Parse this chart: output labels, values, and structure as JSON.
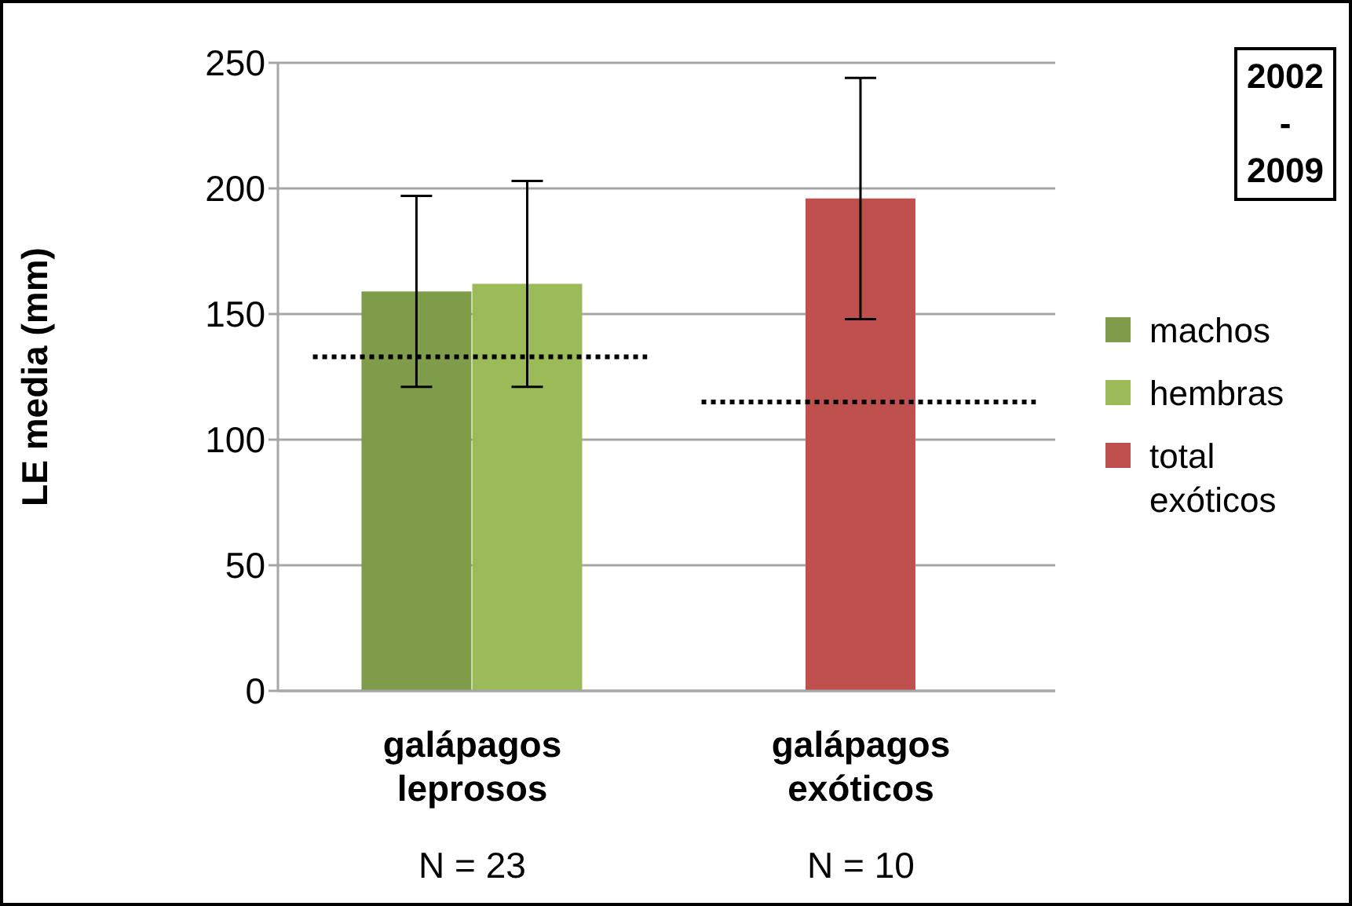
{
  "chart_data": {
    "type": "bar",
    "ylabel": "LE media (mm)",
    "categories": [
      "galápagos leprosos",
      "galápagos exóticos"
    ],
    "series": [
      {
        "name": "machos",
        "color": "#7f9c4a",
        "values": [
          159,
          null
        ],
        "errors": [
          38,
          null
        ]
      },
      {
        "name": "hembras",
        "color": "#9bbb59",
        "values": [
          162,
          null
        ],
        "errors": [
          41,
          null
        ]
      },
      {
        "name": "total exóticos",
        "color": "#c0504d",
        "values": [
          null,
          196
        ],
        "errors": [
          null,
          48
        ]
      }
    ],
    "ylim": [
      0,
      250
    ],
    "yticks": [
      0,
      50,
      100,
      150,
      200,
      250
    ],
    "grid": "y",
    "legend": "right",
    "ref_lines": [
      {
        "axis": "y",
        "value": 133,
        "color": "#000000",
        "line_style": "dotted"
      },
      {
        "axis": "y",
        "value": 115,
        "color": "#000000",
        "line_style": "dotted"
      }
    ],
    "annotations": [
      "2002 - 2009",
      "N = 23",
      "N = 10"
    ]
  }
}
